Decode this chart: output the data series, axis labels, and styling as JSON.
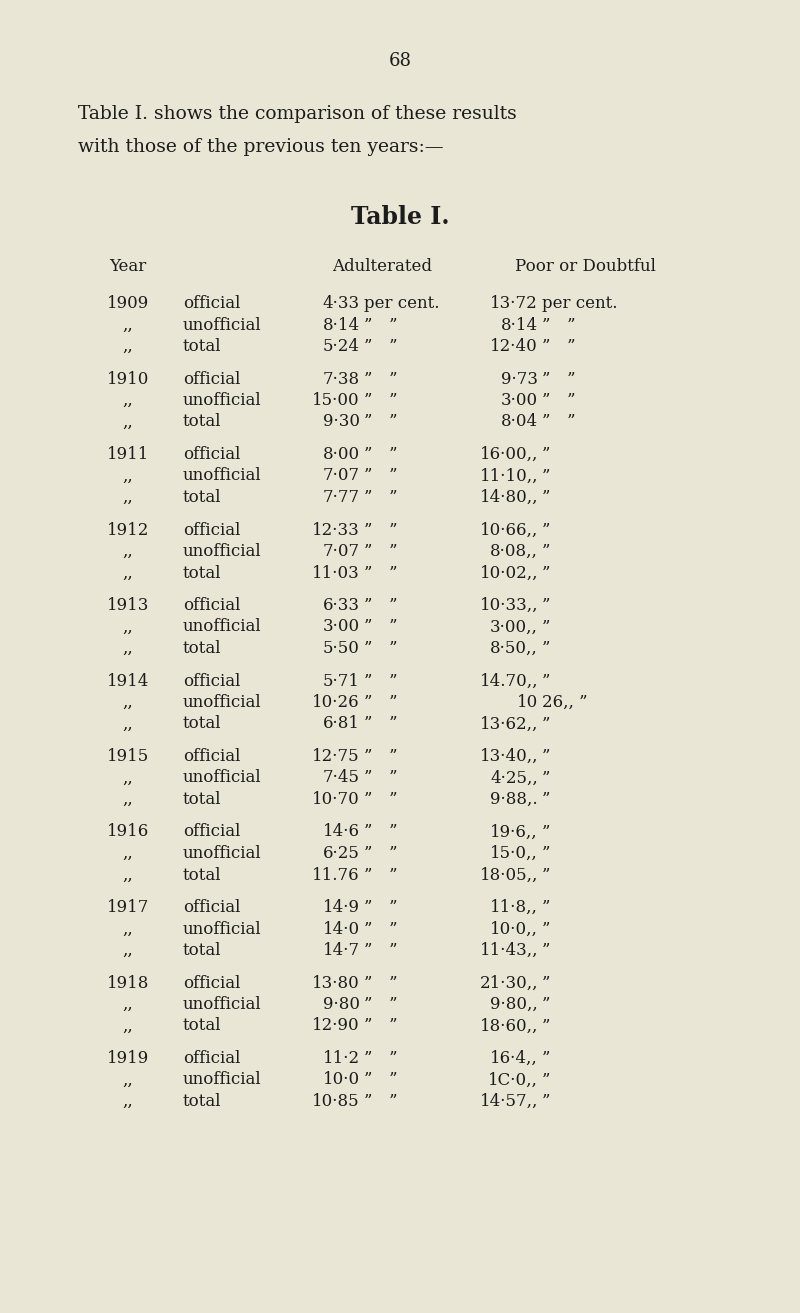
{
  "page_number": "68",
  "intro_line1": "Table I. shows the comparison of these results",
  "intro_line2": "with those of the previous ten years:—",
  "table_title": "Table I.",
  "background_color": "#eae6d5",
  "text_color": "#1c1c1c",
  "rows": [
    {
      "year": "1909",
      "type": "official",
      "adult": "4·33 per cent.",
      "poor": "13·72 per cent."
    },
    {
      "year": ",,",
      "type": "unofficial",
      "adult": "8·14 ” ”",
      "poor": "8·14 ” ”"
    },
    {
      "year": ",,",
      "type": "total",
      "adult": "5·24 ” ”",
      "poor": "12·40 ” ”"
    },
    {
      "year": "1910",
      "type": "official",
      "adult": "7·38 ” ”",
      "poor": "9·73 ” ”"
    },
    {
      "year": ",,",
      "type": "unofficial",
      "adult": "15·00 ” ”",
      "poor": "3·00 ” ”"
    },
    {
      "year": ",,",
      "type": "total",
      "adult": "9·30 ” ”",
      "poor": "8·04 ” ”"
    },
    {
      "year": "1911",
      "type": "official",
      "adult": "8·00 ” ”",
      "poor": "16·00,, ”"
    },
    {
      "year": ",,",
      "type": "unofficial",
      "adult": "7·07 ” ”",
      "poor": "11·10,, ”"
    },
    {
      "year": ",,",
      "type": "total",
      "adult": "7·77 ” ”",
      "poor": "14·80,, ”"
    },
    {
      "year": "1912",
      "type": "official",
      "adult": "12·33 ” ”",
      "poor": "10·66,, ”"
    },
    {
      "year": ",,",
      "type": "unofficial",
      "adult": "7·07 ” ”",
      "poor": "8·08,, ”"
    },
    {
      "year": ",,",
      "type": "total",
      "adult": "11·03 ” ”",
      "poor": "10·02,, ”"
    },
    {
      "year": "1913",
      "type": "official",
      "adult": "6·33 ” ”",
      "poor": "10·33,, ”"
    },
    {
      "year": ",,",
      "type": "unofficial",
      "adult": "3·00 ” ”",
      "poor": "3·00,, ”"
    },
    {
      "year": ",,",
      "type": "total",
      "adult": "5·50 ” ”",
      "poor": "8·50,, ”"
    },
    {
      "year": "1914",
      "type": "official",
      "adult": "5·71 ” ”",
      "poor": "14.70,, ”"
    },
    {
      "year": ",,",
      "type": "unofficial",
      "adult": "10·26 ” ”",
      "poor": "10 26,, ”"
    },
    {
      "year": ",,",
      "type": "total",
      "adult": "6·81 ” ”",
      "poor": "13·62,, ”"
    },
    {
      "year": "1915",
      "type": "official",
      "adult": "12·75 ” ”",
      "poor": "13·40,, ”"
    },
    {
      "year": ",,",
      "type": "unofficial",
      "adult": "7·45 ” ”",
      "poor": "4·25,, ”"
    },
    {
      "year": ",,",
      "type": "total",
      "adult": "10·70 ” ”",
      "poor": "9·88,. ”"
    },
    {
      "year": "1916",
      "type": "official",
      "adult": "14·6 ” ”",
      "poor": "19·6,, ”"
    },
    {
      "year": ",,",
      "type": "unofficial",
      "adult": "6·25 ” ”",
      "poor": "15·0,, ”"
    },
    {
      "year": ",,",
      "type": "total",
      "adult": "11.76 ” ”",
      "poor": "18·05,, ”"
    },
    {
      "year": "1917",
      "type": "official",
      "adult": "14·9 ” ”",
      "poor": "11·8,, ”"
    },
    {
      "year": ",,",
      "type": "unofficial",
      "adult": "14·0 ” ”",
      "poor": "10·0,, ”"
    },
    {
      "year": ",,",
      "type": "total",
      "adult": "14·7 ” ”",
      "poor": "11·43,, ”"
    },
    {
      "year": "1918",
      "type": "official",
      "adult": "13·80 ” ”",
      "poor": "21·30,, ”"
    },
    {
      "year": ",,",
      "type": "unofficial",
      "adult": "9·80 ” ”",
      "poor": "9·80,, ”"
    },
    {
      "year": ",,",
      "type": "total",
      "adult": "12·90 ” ”",
      "poor": "18·60,, ”"
    },
    {
      "year": "1919",
      "type": "official",
      "adult": "11·2 ” ”",
      "poor": "16·4,, ”"
    },
    {
      "year": ",,",
      "type": "unofficial",
      "adult": "10·0 ” ”",
      "poor": "1C·0,, ”"
    },
    {
      "year": ",,",
      "type": "total",
      "adult": "10·85 ” ”",
      "poor": "14·57,, ”"
    }
  ]
}
